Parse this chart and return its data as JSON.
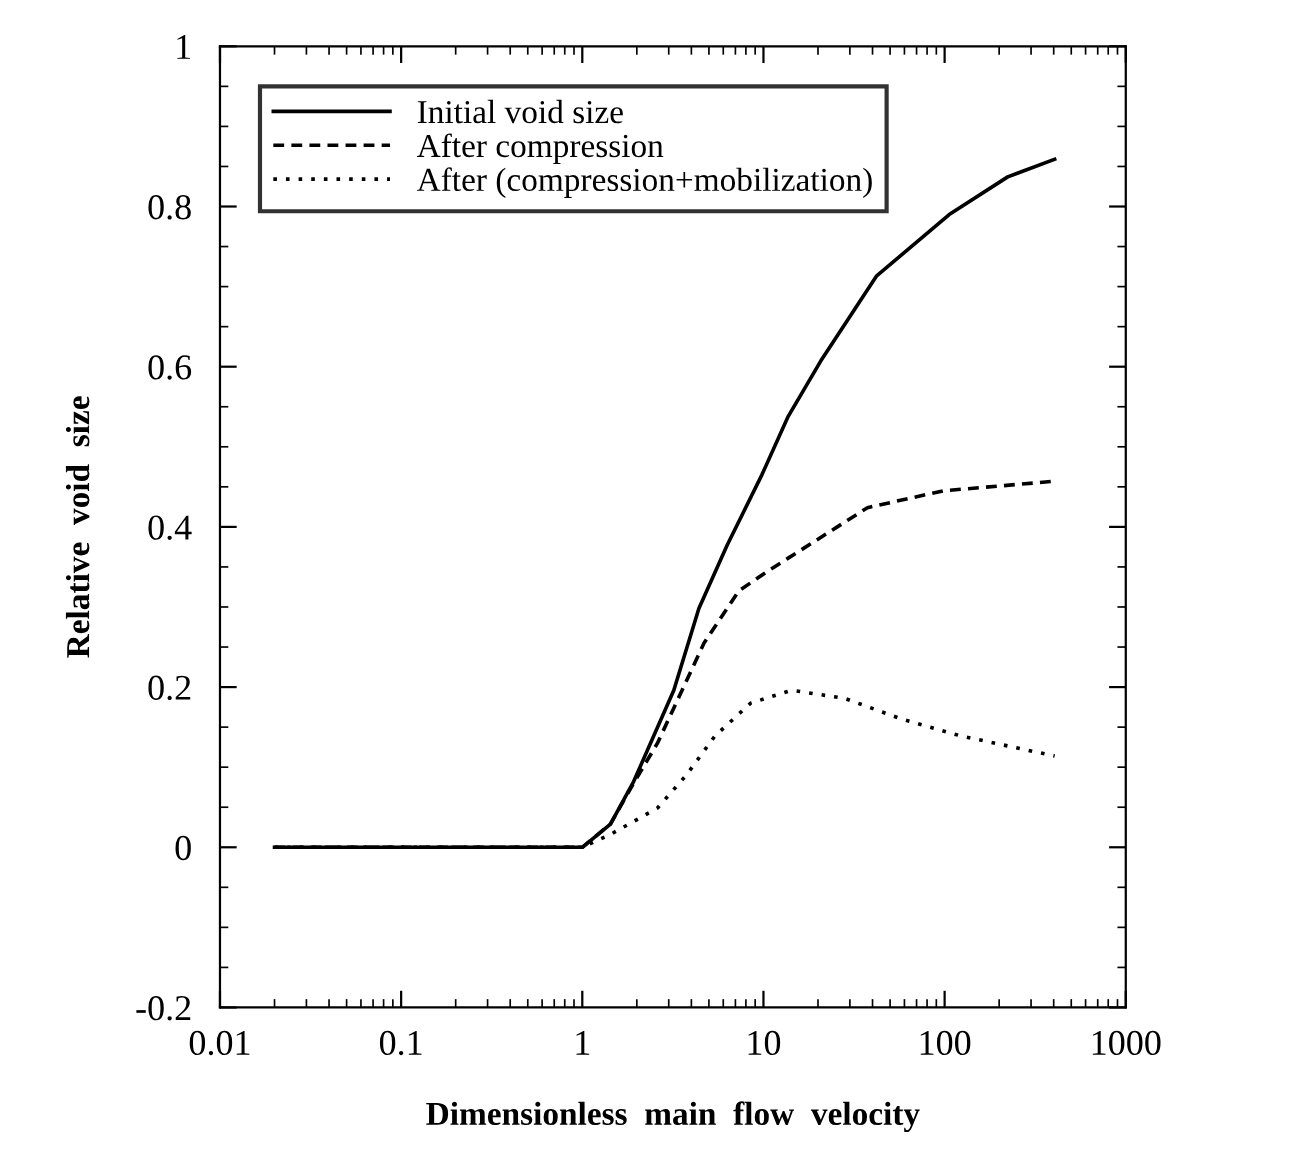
{
  "chart_data": {
    "type": "line",
    "xlabel": "Dimensionless  main  flow  velocity",
    "ylabel": "Relative  void  size",
    "log": "x",
    "grid": false,
    "legend": "top left",
    "marker": "none",
    "xlim": [
      0.01,
      1000
    ],
    "xticks": [
      0.01,
      0.1,
      1,
      10,
      100,
      1000
    ],
    "ylim": [
      -0.2,
      1
    ],
    "yticks": [
      -0.2,
      0,
      0.2,
      0.4,
      0.6,
      0.8,
      1
    ],
    "series": [
      {
        "name": "Initial void size",
        "color": "#000000",
        "line_style": "solid",
        "x": [
          0.02,
          1,
          1.43,
          1.92,
          3.2,
          4.4,
          6.3,
          9.8,
          13.7,
          20.7,
          42,
          106,
          223,
          405
        ],
        "values": [
          0,
          0,
          0.029,
          0.082,
          0.196,
          0.298,
          0.377,
          0.465,
          0.538,
          0.607,
          0.713,
          0.79,
          0.837,
          0.859
        ]
      },
      {
        "name": "After compression",
        "color": "#000000",
        "line_style": "dashed",
        "x": [
          0.02,
          1,
          1.43,
          1.92,
          2.6,
          4.7,
          7.3,
          10.6,
          13.7,
          37.5,
          98,
          405
        ],
        "values": [
          0,
          0,
          0.029,
          0.08,
          0.13,
          0.255,
          0.32,
          0.345,
          0.361,
          0.424,
          0.445,
          0.457
        ]
      },
      {
        "name": "After (compression+mobilization)",
        "color": "#000000",
        "line_style": "dotted",
        "x": [
          0.02,
          1,
          1.43,
          2.6,
          3.75,
          5.4,
          8.5,
          14.3,
          28,
          58,
          123,
          405
        ],
        "values": [
          0,
          0,
          0.016,
          0.049,
          0.09,
          0.139,
          0.18,
          0.196,
          0.186,
          0.16,
          0.139,
          0.114
        ]
      }
    ]
  }
}
